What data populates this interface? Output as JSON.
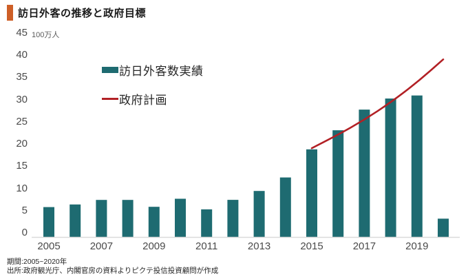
{
  "header": {
    "title": "訪日外客の推移と政府目標"
  },
  "legend": {
    "bars_label": "訪日外客数実績",
    "line_label": "政府計画"
  },
  "y_axis": {
    "unit": "100万人",
    "ticks": [
      45,
      40,
      35,
      30,
      25,
      20,
      15,
      10,
      5,
      0
    ]
  },
  "x_axis": {
    "tick_labels": [
      "2005",
      "2007",
      "2009",
      "2011",
      "2013",
      "2015",
      "2017",
      "2019"
    ]
  },
  "footer": {
    "period": "期間:2005~2020年",
    "source": "出所:政府観光庁、内閣官房の資料よりピクテ投信投資顧問が作成"
  },
  "colors": {
    "bar": "#1E6B71",
    "line": "#B22025",
    "accent": "#CE5F27",
    "axis": "#DADADA",
    "tick_text": "#4a4a4a"
  },
  "chart_data": {
    "type": "bar",
    "title": "訪日外客の推移と政府目標",
    "unit": "100万人",
    "categories": [
      2005,
      2006,
      2007,
      2008,
      2009,
      2010,
      2011,
      2012,
      2013,
      2014,
      2015,
      2016,
      2017,
      2018,
      2019,
      2020
    ],
    "series": [
      {
        "name": "訪日外客数実績",
        "type": "bar",
        "values": [
          6.73,
          7.33,
          8.35,
          8.35,
          6.79,
          8.61,
          6.22,
          8.36,
          10.36,
          13.41,
          19.74,
          24.04,
          28.69,
          31.19,
          31.88,
          4.12
        ]
      },
      {
        "name": "政府計画",
        "type": "line",
        "x": [
          2015,
          2016,
          2017,
          2018,
          2019,
          2020
        ],
        "values": [
          20,
          23,
          26.4,
          30.3,
          34.8,
          40
        ]
      }
    ],
    "ylim": [
      0,
      45
    ],
    "xlabel": "",
    "ylabel": "100万人",
    "grid": false,
    "legend_position": "top-left-inside"
  }
}
